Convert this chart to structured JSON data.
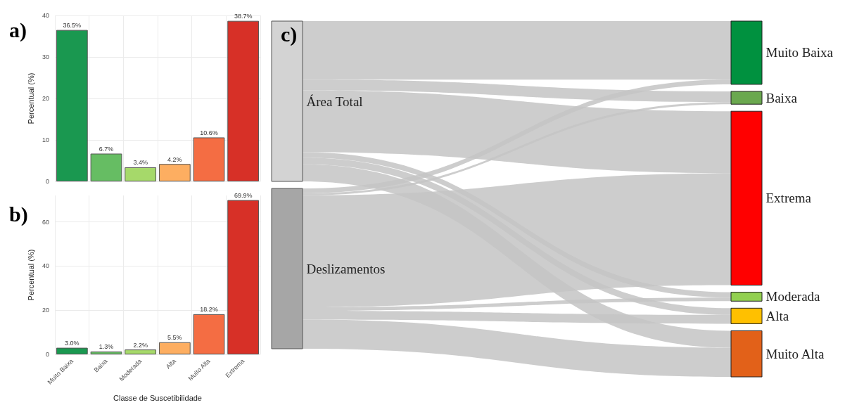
{
  "chart_data": [
    {
      "type": "bar",
      "title": "a)",
      "ylabel": "Percentual (%)",
      "categories": [
        "Muito Baixa",
        "Baixa",
        "Moderada",
        "Alta",
        "Muito Alta",
        "Extrema"
      ],
      "values": [
        36.5,
        6.7,
        3.4,
        4.2,
        10.6,
        38.7
      ],
      "colors": [
        "#1a9850",
        "#66bd63",
        "#a6d96a",
        "#fdae61",
        "#f46d43",
        "#d73027"
      ],
      "value_labels": [
        "36.5%",
        "6.7%",
        "3.4%",
        "4.2%",
        "10.6%",
        "38.7%"
      ],
      "ylim": [
        0,
        40
      ],
      "yticks": [
        0,
        10,
        20,
        30,
        40
      ],
      "grid": true,
      "tick_labels": "y"
    },
    {
      "type": "bar",
      "title": "b)",
      "xlabel": "Classe de Suscetibilidade",
      "ylabel": "Percentual (%)",
      "categories": [
        "Muito Baixa",
        "Baixa",
        "Moderada",
        "Alta",
        "Muito Alta",
        "Extrema"
      ],
      "values": [
        3.0,
        1.3,
        2.2,
        5.5,
        18.2,
        69.9
      ],
      "colors": [
        "#1a9850",
        "#66bd63",
        "#a6d96a",
        "#fdae61",
        "#f46d43",
        "#d73027"
      ],
      "value_labels": [
        "3.0%",
        "1.3%",
        "2.2%",
        "5.5%",
        "18.2%",
        "69.9%"
      ],
      "ylim": [
        0,
        72
      ],
      "yticks": [
        0,
        20,
        40,
        60
      ],
      "grid": true
    },
    {
      "type": "other",
      "title": "c)",
      "categories": [
        "Muito Baixa",
        "Baixa",
        "Extrema",
        "Moderada",
        "Alta",
        "Muito Alta"
      ],
      "colors": [
        "#00913f",
        "#6aa84f",
        "#ff0000",
        "#92d050",
        "#ffc000",
        "#e26119"
      ],
      "annotations": [
        "Área Total",
        "Deslizamentos"
      ]
    }
  ]
}
